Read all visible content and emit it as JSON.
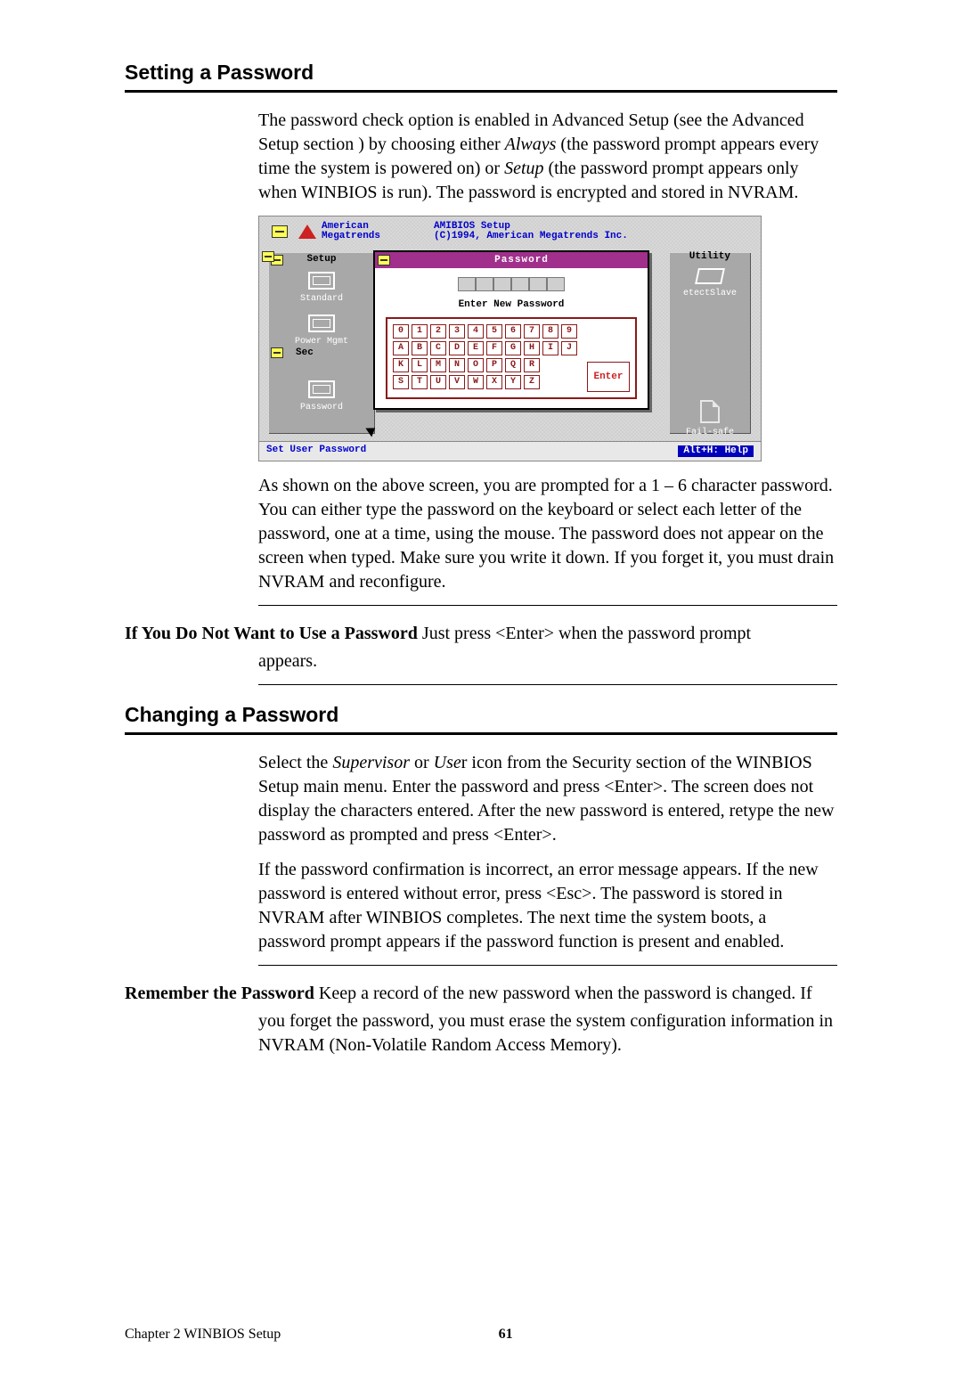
{
  "headings": {
    "setting": "Setting a Password",
    "changing": "Changing a Password"
  },
  "paragraphs": {
    "p1a": "The password check option is enabled in Advanced Setup (see the Advanced Setup section ) by choosing either ",
    "p1_italic1": "Always",
    "p1b": " (the password prompt appears every time the system is powered on) or ",
    "p1_italic2": "Setup",
    "p1c": " (the password prompt appears only when WINBIOS is run). The password is encrypted and stored in NVRAM.",
    "p2": "As shown on the above screen, you are prompted for a 1 – 6 character password. You can either type the password on the keyboard or select each letter of the password, one at a time, using the mouse. The password does not appear on the screen when typed. Make sure you write it down. If you forget it, you must drain NVRAM and reconfigure.",
    "tip1_lead": "If You Do Not Want to Use a Password",
    "tip1_rest_a": " Just press <Enter> when the password prompt",
    "tip1_rest_b": "appears.",
    "c1a": "Select the ",
    "c1_italic1": "Supervisor",
    "c1b": " or ",
    "c1_italic2": "Use",
    "c1c": "r icon from the Security section of the WINBIOS Setup main menu. Enter the password and press <Enter>. The screen does not display the characters entered. After the new password is entered, retype the new password as prompted and press <Enter>.",
    "c2": "If the password confirmation is incorrect, an error message appears. If the new password is entered without error, press <Esc>. The password is stored in NVRAM after WINBIOS completes. The next time the system boots, a password prompt appears if the password function is present and enabled.",
    "tip2_lead": "Remember the Password",
    "tip2_rest_a": " Keep a record of the new password when the password is changed. If",
    "tip2_rest_b": "you forget the password, you must erase the system configuration information in NVRAM (Non-Volatile Random Access Memory)."
  },
  "footer": {
    "left": "Chapter 2 WINBIOS Setup",
    "page": "61"
  },
  "bios": {
    "brand1": "American",
    "brand2": "Megatrends",
    "title1": "AMIBIOS Setup",
    "title2": "(C)1994, American Megatrends Inc.",
    "left_title": "Setup",
    "right_title": "Utility",
    "left_items": [
      "Standard",
      "Power Mgmt",
      "Password"
    ],
    "left_sec": "Sec",
    "right_items": [
      "etectSlave",
      "Fail-safe"
    ],
    "dlg_title": "Password",
    "dlg_prompt": "Enter New Password",
    "rows": [
      [
        "0",
        "1",
        "2",
        "3",
        "4",
        "5",
        "6",
        "7",
        "8",
        "9"
      ],
      [
        "A",
        "B",
        "C",
        "D",
        "E",
        "F",
        "G",
        "H",
        "I",
        "J"
      ],
      [
        "K",
        "L",
        "M",
        "N",
        "O",
        "P",
        "Q",
        "R"
      ],
      [
        "S",
        "T",
        "U",
        "V",
        "W",
        "X",
        "Y",
        "Z"
      ]
    ],
    "enter": "Enter",
    "status_left": "Set User Password",
    "status_right": "Alt+H: Help",
    "colors": {
      "titlebar": "#a0308c",
      "key_border": "#8a1a1a",
      "blue": "#0000cc",
      "statusbar_btn": "#0000bb",
      "panel_gray": "#a8a8a8",
      "yellow": "#ffff55"
    }
  }
}
